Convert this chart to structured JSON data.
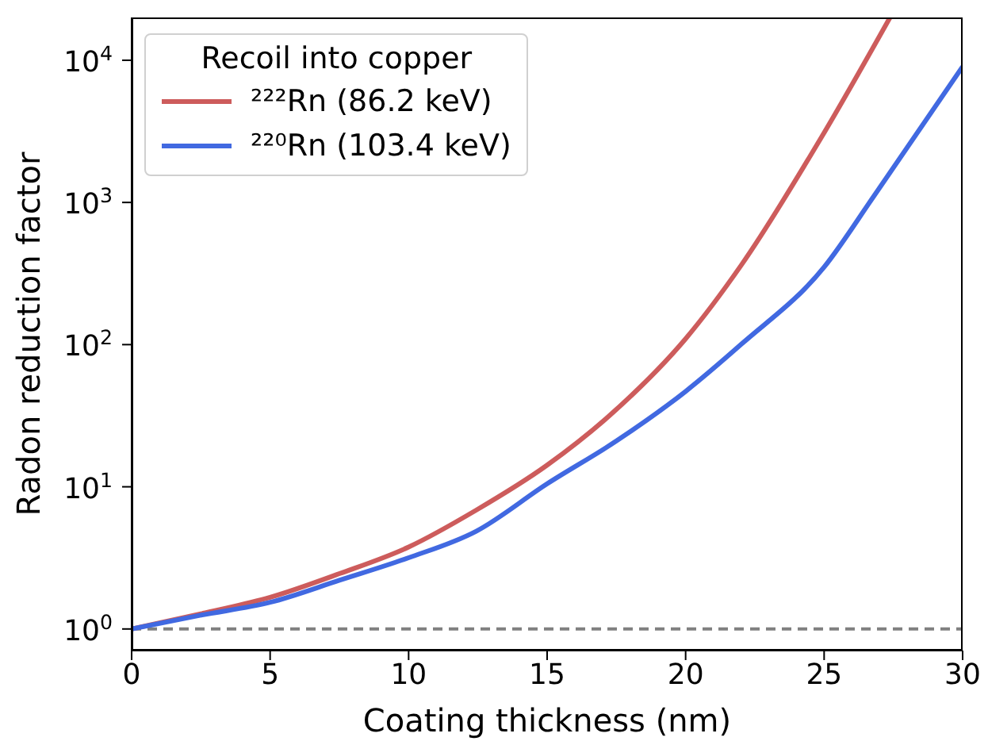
{
  "chart_data": {
    "type": "line",
    "xlabel": "Coating thickness (nm)",
    "ylabel": "Radon reduction factor",
    "legend_title": "Recoil into copper",
    "series": [
      {
        "name": "²²²Rn (86.2 keV)",
        "color": "#cd5c5c",
        "x": [
          0,
          2.5,
          5,
          7.5,
          10,
          12.44,
          15,
          17.5,
          20,
          22.02,
          24.89,
          27.38
        ],
        "values": [
          1,
          1.28,
          1.67,
          2.45,
          3.77,
          6.85,
          14.2,
          35,
          110,
          365,
          2845,
          20000
        ]
      },
      {
        "name": "²²⁰Rn (103.4 keV)",
        "color": "#4169e1",
        "x": [
          0,
          2.5,
          5,
          7.5,
          10,
          12.44,
          15,
          17.5,
          20,
          22.02,
          25,
          26.8,
          30
        ],
        "values": [
          1,
          1.25,
          1.54,
          2.2,
          3.17,
          4.87,
          10.5,
          21,
          46.9,
          101,
          351,
          1110,
          9020
        ]
      }
    ],
    "xlim": [
      0,
      30
    ],
    "xticks": [
      0,
      5,
      10,
      15,
      20,
      25,
      30
    ],
    "ylim": [
      0.705,
      20000
    ],
    "yticks": [
      {
        "value": 1,
        "label": "10$^{0}$"
      },
      {
        "value": 10,
        "label": "10$^{1}$"
      },
      {
        "value": 100,
        "label": "10$^{2}$"
      },
      {
        "value": 1000,
        "label": "10$^{3}$"
      },
      {
        "value": 10000,
        "label": "10$^{4}$"
      }
    ],
    "log": "y",
    "grid": false,
    "legend": "top left",
    "marker": "none",
    "line_style": "solid",
    "ref_lines": [
      {
        "axis": "y",
        "value": 1,
        "color": "#808080",
        "line_style": "dashed"
      }
    ]
  }
}
